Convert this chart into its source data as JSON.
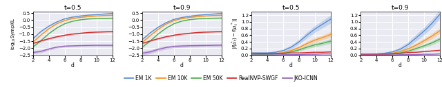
{
  "title_left1": "t=0.5",
  "title_left2": "t=0.9",
  "title_right1": "t=0.5",
  "title_right2": "t=0.9",
  "xlabel": "d",
  "colors": {
    "EM1K": "#5b8fd4",
    "EM10K": "#f5921e",
    "EM50K": "#4daf4a",
    "RealNVP": "#d62728",
    "JKO": "#9467bd"
  },
  "legend_labels": [
    "EM 1K",
    "EM 10K",
    "EM 50K",
    "RealNVP-SWGF",
    "JKO-ICNN"
  ],
  "background": "#eaeaf2",
  "ylim_left": [
    -2.5,
    0.6
  ],
  "ylim_right": [
    0.0,
    1.3
  ],
  "xlim": [
    2,
    12
  ],
  "yticks_left": [
    -2.5,
    -2.0,
    -1.5,
    -1.0,
    -0.5,
    0.0,
    0.5
  ],
  "yticks_right": [
    0.0,
    0.2,
    0.4,
    0.6,
    0.8,
    1.0,
    1.2
  ],
  "xticks": [
    2,
    4,
    6,
    8,
    10,
    12
  ]
}
